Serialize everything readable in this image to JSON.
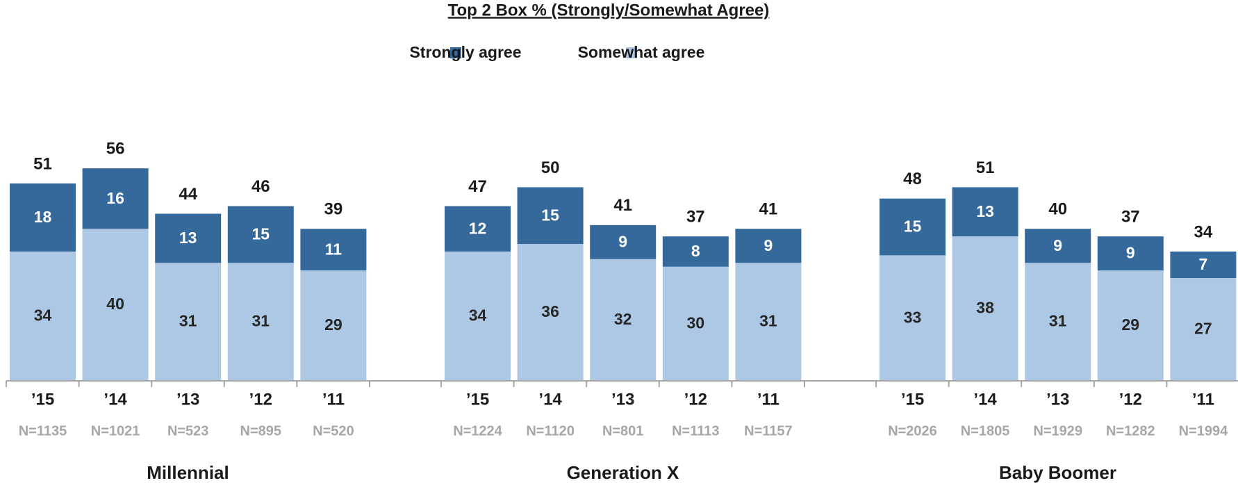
{
  "chart_data": {
    "type": "stacked_bar",
    "title": "Top 2 Box % (Strongly/Somewhat Agree)",
    "groups": [
      "Millennial",
      "Generation X",
      "Baby Boomer"
    ],
    "categories": [
      "’15",
      "’14",
      "’13",
      "’12",
      "’11",
      "’15",
      "’14",
      "’13",
      "’12",
      "’11",
      "’15",
      "’14",
      "’13",
      "’12",
      "’11"
    ],
    "n_labels": [
      "N=1135",
      "N=1021",
      "N=523",
      "N=895",
      "N=520",
      "N=1224",
      "N=1120",
      "N=801",
      "N=1113",
      "N=1157",
      "N=2026",
      "N=1805",
      "N=1929",
      "N=1282",
      "N=1994"
    ],
    "totals": [
      51,
      56,
      44,
      46,
      39,
      47,
      50,
      41,
      37,
      41,
      48,
      51,
      40,
      37,
      34
    ],
    "series": [
      {
        "name": "Strongly agree",
        "color": "#35689b",
        "values": [
          18,
          16,
          13,
          15,
          11,
          12,
          15,
          9,
          8,
          9,
          15,
          13,
          9,
          9,
          7
        ]
      },
      {
        "name": "Somewhat agree",
        "color": "#adc8e4",
        "values": [
          34,
          40,
          31,
          31,
          29,
          34,
          36,
          32,
          30,
          31,
          33,
          38,
          31,
          29,
          27
        ]
      }
    ],
    "ylim": [
      0,
      70
    ]
  }
}
